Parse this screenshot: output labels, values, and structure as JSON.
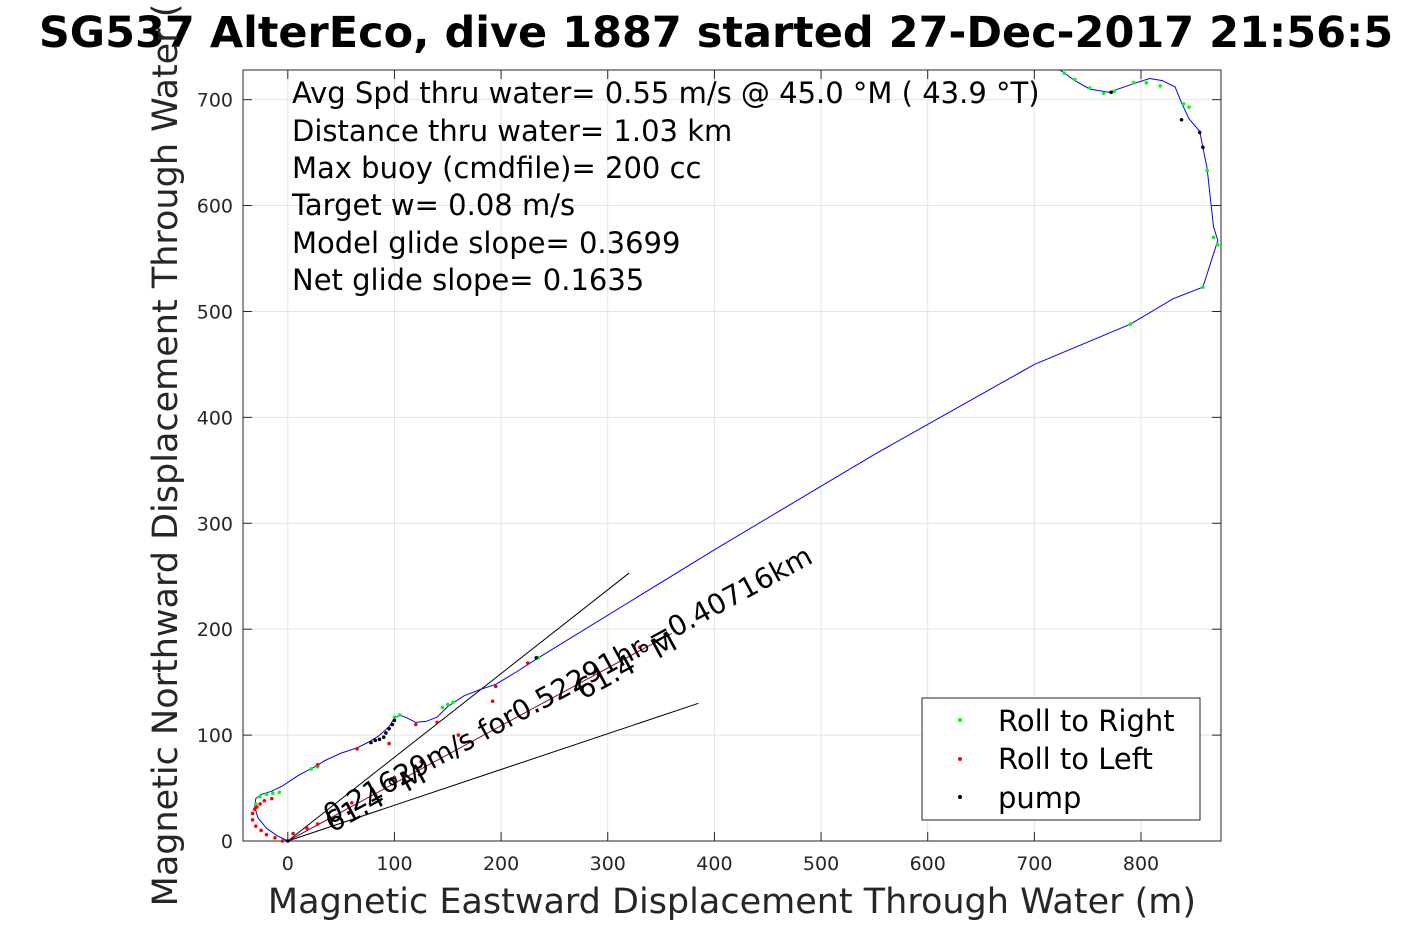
{
  "chart_data": {
    "type": "scatter",
    "title": "SG537 AlterEco, dive 1887 started 27-Dec-2017 21:56:5",
    "xlabel": "Magnetic Eastward Displacement Through Water (m)",
    "ylabel": "Magnetic Northward Displacement Through Water (",
    "xlim": [
      -42,
      875
    ],
    "ylim": [
      0,
      728
    ],
    "xticks": [
      0,
      100,
      200,
      300,
      400,
      500,
      600,
      700,
      800
    ],
    "yticks": [
      0,
      100,
      200,
      300,
      400,
      500,
      600,
      700
    ],
    "grid": true,
    "info_lines": [
      "Avg Spd thru water=  0.55 m/s @  45.0 °M ( 43.9 °T)",
      "Distance thru water=  1.03 km",
      "Max buoy (cmdfile)= 200 cc",
      "Target w= 0.08 m/s",
      "Model glide slope= 0.3699",
      "Net glide slope= 0.1635"
    ],
    "legend": {
      "position": "bottom-right",
      "entries": [
        {
          "label": "Roll to Right",
          "color": "#00ff00"
        },
        {
          "label": "Roll to Left",
          "color": "#ff0000"
        },
        {
          "label": "pump",
          "color": "#000000"
        }
      ]
    },
    "annotations": {
      "current_label": "0.21629m/s for0.52291hr =0.40716km",
      "heading_label_near": "61.4 °M",
      "heading_label_far": "61.4 °M"
    },
    "reference_lines": [
      {
        "name": "heading-wedge-upper",
        "x": [
          0,
          320
        ],
        "y": [
          0,
          253
        ]
      },
      {
        "name": "heading-wedge-lower",
        "x": [
          0,
          385
        ],
        "y": [
          0,
          130
        ]
      },
      {
        "name": "current-vector",
        "x": [
          0,
          360
        ],
        "y": [
          0,
          196
        ]
      }
    ],
    "track": {
      "color": "#0000ff",
      "x": [
        0,
        -10,
        -20,
        -28,
        -31,
        -30,
        -25,
        -15,
        -5,
        10,
        25,
        35,
        50,
        65,
        75,
        85,
        95,
        100,
        105,
        112,
        120,
        130,
        140,
        150,
        165,
        180,
        195,
        215,
        235,
        400,
        550,
        700,
        790,
        830,
        858,
        872,
        868,
        862,
        858,
        855,
        845,
        838,
        832,
        820,
        808,
        790,
        770,
        752,
        738,
        724
      ],
      "y": [
        0,
        5,
        12,
        22,
        32,
        40,
        44,
        47,
        52,
        62,
        70,
        76,
        83,
        88,
        93,
        99,
        108,
        116,
        119,
        116,
        112,
        113,
        117,
        127,
        137,
        143,
        148,
        160,
        173,
        275,
        365,
        450,
        488,
        512,
        523,
        567,
        580,
        635,
        655,
        670,
        682,
        697,
        712,
        718,
        720,
        714,
        707,
        710,
        718,
        728
      ]
    },
    "roll_right": {
      "color": "#00ff00",
      "x": [
        -30,
        -26,
        -20,
        -14,
        -8,
        22,
        28,
        100,
        105,
        145,
        150,
        155,
        235,
        790,
        858,
        872,
        868,
        862,
        845,
        840,
        818,
        805,
        793,
        775,
        765,
        752,
        738,
        728
      ],
      "y": [
        35,
        42,
        44,
        45,
        46,
        68,
        70,
        117,
        119,
        126,
        129,
        131,
        173,
        488,
        523,
        563,
        570,
        633,
        693,
        696,
        713,
        716,
        716,
        708,
        706,
        711,
        719,
        725
      ]
    },
    "roll_left": {
      "color": "#ff0000",
      "x": [
        -5,
        -12,
        -20,
        -25,
        -30,
        -33,
        -33,
        -31,
        -29,
        -26,
        -22,
        -15,
        5,
        18,
        28,
        60,
        100,
        125,
        160,
        192,
        225,
        330,
        355,
        28,
        65,
        95,
        120,
        140,
        195
      ],
      "y": [
        0,
        3,
        6,
        10,
        14,
        20,
        26,
        30,
        32,
        35,
        38,
        40,
        7,
        12,
        16,
        36,
        60,
        75,
        100,
        132,
        168,
        183,
        195,
        72,
        87,
        92,
        110,
        112,
        146
      ]
    },
    "pump": {
      "color": "#000000",
      "x": [
        0,
        78,
        82,
        86,
        90,
        92,
        95,
        98,
        100,
        233,
        838,
        855,
        858,
        772
      ],
      "y": [
        0,
        93,
        95,
        96,
        98,
        102,
        106,
        110,
        114,
        173,
        681,
        669,
        655,
        707
      ]
    }
  }
}
